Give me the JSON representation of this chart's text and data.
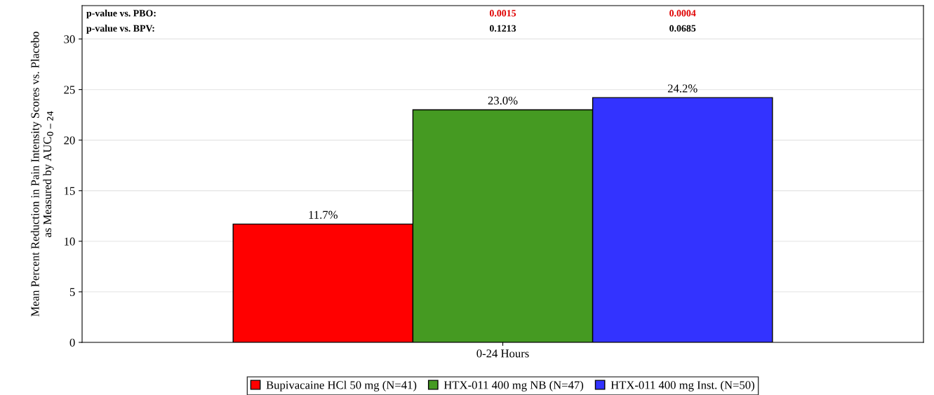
{
  "chart_data": {
    "type": "bar",
    "ylabel": "Mean Percent Reduction in Pain Intensity Scores vs. Placebo\nas Measured by AUC$_{0−24}$",
    "categories": [
      "0-24 Hours"
    ],
    "series": [
      {
        "name": "Bupivacaine HCl 50 mg (N=41)",
        "color": "#ff0000",
        "values": [
          11.7
        ],
        "value_labels": [
          "11.7%"
        ]
      },
      {
        "name": "HTX-011 400 mg NB (N=47)",
        "color": "#459a22",
        "values": [
          23.0
        ],
        "value_labels": [
          "23.0%"
        ]
      },
      {
        "name": "HTX-011 400 mg Inst. (N=50)",
        "color": "#3333ff",
        "values": [
          24.2
        ],
        "value_labels": [
          "24.2%"
        ]
      }
    ],
    "ylim": [
      0,
      33.3
    ],
    "yticks": [
      0,
      5,
      10,
      15,
      20,
      25,
      30
    ],
    "grid": "y",
    "legend": "bottom",
    "annotations": [
      "p-value vs. PBO:",
      "0.0015",
      "0.0004",
      "p-value vs. BPV:",
      "0.1213",
      "0.0685"
    ]
  }
}
